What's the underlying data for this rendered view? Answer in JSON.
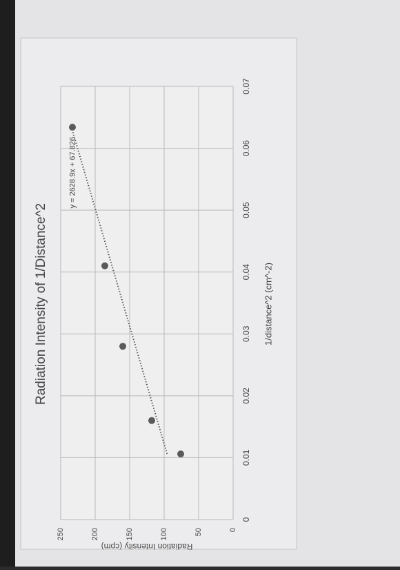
{
  "chart_data": {
    "type": "scatter",
    "title": "Radiation Intensity of 1/Distance^2",
    "x_label": "1/distance^2 (cm^-2)",
    "y_label": "Radiation Intensity (cpm)",
    "x": [
      0.0106,
      0.016,
      0.028,
      0.041,
      0.0634
    ],
    "values": [
      76,
      118,
      160,
      186,
      233
    ],
    "color": "#5a5a5a",
    "xlim": [
      0,
      0.07
    ],
    "xticks": [
      0,
      0.01,
      0.02,
      0.03,
      0.04,
      0.05,
      0.06,
      0.07
    ],
    "ylim": [
      0,
      250
    ],
    "yticks": [
      0,
      50,
      100,
      150,
      200,
      250
    ],
    "grid": true,
    "trendline": {
      "slope": 2628.9,
      "intercept": 67.826,
      "label": "y = 2628.9x + 67.826"
    }
  }
}
